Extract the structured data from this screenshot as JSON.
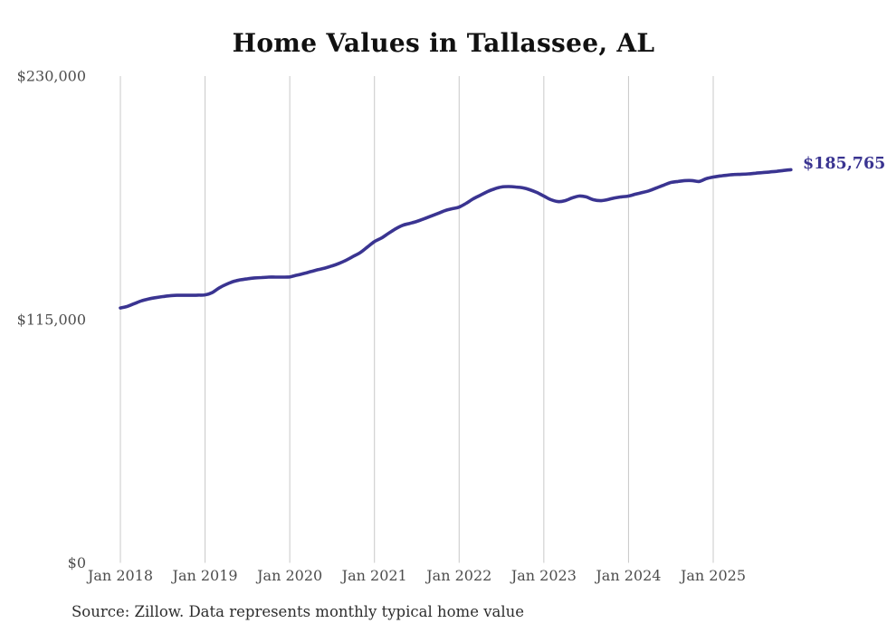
{
  "title": "Home Values in Tallassee, AL",
  "source_note": "Source: Zillow. Data represents monthly typical home value",
  "colors": {
    "line": "#3a3491",
    "grid": "#c8c8c8",
    "axis_text": "#4d4d4d",
    "title_text": "#111111",
    "note_text": "#2e2e2e",
    "end_label_text": "#3a3491",
    "background": "#ffffff"
  },
  "chart_data": {
    "type": "line",
    "title": "Home Values in Tallassee, AL",
    "xlabel": "",
    "ylabel": "",
    "x_tick_labels": [
      "Jan 2018",
      "Jan 2019",
      "Jan 2020",
      "Jan 2021",
      "Jan 2022",
      "Jan 2023",
      "Jan 2024",
      "Jan 2025"
    ],
    "y_tick_labels": [
      "$0",
      "$115,000",
      "$230,000"
    ],
    "y_tick_values": [
      0,
      115000,
      230000
    ],
    "ylim": [
      0,
      230000
    ],
    "grid": "vertical-only",
    "legend": "none",
    "series": [
      {
        "name": "Monthly typical home value",
        "start": "Jan 2018",
        "frequency": "monthly",
        "values": [
          120400,
          121200,
          122500,
          123800,
          124700,
          125300,
          125800,
          126200,
          126400,
          126400,
          126400,
          126500,
          126600,
          127700,
          129900,
          131600,
          132900,
          133700,
          134200,
          134600,
          134800,
          135000,
          135000,
          135000,
          135100,
          135900,
          136700,
          137600,
          138500,
          139300,
          140300,
          141500,
          143000,
          144800,
          146600,
          149200,
          151800,
          153500,
          155700,
          157800,
          159500,
          160400,
          161300,
          162500,
          163800,
          165100,
          166400,
          167300,
          168100,
          169900,
          172000,
          173700,
          175400,
          176700,
          177600,
          177800,
          177600,
          177200,
          176300,
          175000,
          173300,
          171600,
          170700,
          171100,
          172400,
          173300,
          172900,
          171600,
          171100,
          171600,
          172400,
          172900,
          173300,
          174200,
          175000,
          175900,
          177200,
          178500,
          179700,
          180200,
          180600,
          180600,
          180200,
          181500,
          182300,
          182800,
          183200,
          183500,
          183600,
          183800,
          184100,
          184400,
          184700,
          185000,
          185400,
          185765
        ],
        "final_value": 185765,
        "final_value_label": "$185,765"
      }
    ]
  }
}
